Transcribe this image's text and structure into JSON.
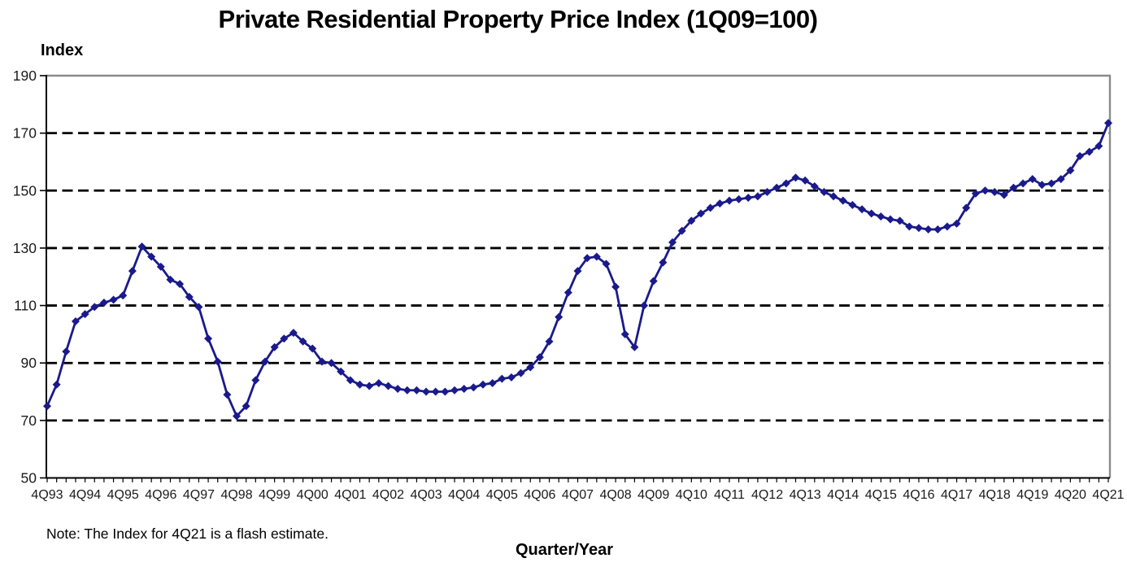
{
  "chart_data": {
    "type": "line",
    "title": "Private Residential Property Price Index (1Q09=100)",
    "ylabel": "Index",
    "xlabel": "Quarter/Year",
    "note": "Note: The Index for 4Q21 is a flash estimate.",
    "series_name": "Private Residential Property Price Index",
    "ylim": [
      50,
      190
    ],
    "yticks": [
      50,
      70,
      90,
      110,
      130,
      150,
      170,
      190
    ],
    "x_tick_label_step": 4,
    "grid": "horizontal-dashed",
    "legend": "none",
    "marker": "diamond",
    "colors": {
      "series": "#1a1a8c",
      "grid": "#000000",
      "plot_border": "#8a8a8a",
      "axis": "#000000",
      "text": "#1a1a1a"
    },
    "categories": [
      "4Q93",
      "1Q94",
      "2Q94",
      "3Q94",
      "4Q94",
      "1Q95",
      "2Q95",
      "3Q95",
      "4Q95",
      "1Q96",
      "2Q96",
      "3Q96",
      "4Q96",
      "1Q97",
      "2Q97",
      "3Q97",
      "4Q97",
      "1Q98",
      "2Q98",
      "3Q98",
      "4Q98",
      "1Q99",
      "2Q99",
      "3Q99",
      "4Q99",
      "1Q00",
      "2Q00",
      "3Q00",
      "4Q00",
      "1Q01",
      "2Q01",
      "3Q01",
      "4Q01",
      "1Q02",
      "2Q02",
      "3Q02",
      "4Q02",
      "1Q03",
      "2Q03",
      "3Q03",
      "4Q03",
      "1Q04",
      "2Q04",
      "3Q04",
      "4Q04",
      "1Q05",
      "2Q05",
      "3Q05",
      "4Q05",
      "1Q06",
      "2Q06",
      "3Q06",
      "4Q06",
      "1Q07",
      "2Q07",
      "3Q07",
      "4Q07",
      "1Q08",
      "2Q08",
      "3Q08",
      "4Q08",
      "1Q09",
      "2Q09",
      "3Q09",
      "4Q09",
      "1Q10",
      "2Q10",
      "3Q10",
      "4Q10",
      "1Q11",
      "2Q11",
      "3Q11",
      "4Q11",
      "1Q12",
      "2Q12",
      "3Q12",
      "4Q12",
      "1Q13",
      "2Q13",
      "3Q13",
      "4Q13",
      "1Q14",
      "2Q14",
      "3Q14",
      "4Q14",
      "1Q15",
      "2Q15",
      "3Q15",
      "4Q15",
      "1Q16",
      "2Q16",
      "3Q16",
      "4Q16",
      "1Q17",
      "2Q17",
      "3Q17",
      "4Q17",
      "1Q18",
      "2Q18",
      "3Q18",
      "4Q18",
      "1Q19",
      "2Q19",
      "3Q19",
      "4Q19",
      "1Q20",
      "2Q20",
      "3Q20",
      "4Q20",
      "1Q21",
      "2Q21",
      "3Q21",
      "4Q21"
    ],
    "values": [
      75,
      82.5,
      94,
      104.5,
      107,
      109.5,
      111,
      112,
      113.5,
      122,
      130.5,
      127,
      123.5,
      119,
      117.5,
      113,
      109.5,
      98.5,
      90.5,
      79,
      71.5,
      75,
      84,
      90.5,
      95.5,
      98.5,
      100.5,
      97.5,
      95,
      90.5,
      90,
      87,
      84,
      82.5,
      82,
      83,
      82,
      81,
      80.5,
      80.5,
      80,
      80,
      80,
      80.5,
      81,
      81.5,
      82.5,
      83,
      84.5,
      85,
      86.5,
      88.5,
      92,
      97.5,
      106,
      114.5,
      122,
      126.5,
      127,
      124.5,
      116.5,
      100,
      95.5,
      110,
      118.5,
      125,
      132,
      136,
      139.5,
      142,
      144,
      145.5,
      146.5,
      147,
      147.5,
      148,
      149.5,
      151,
      152.5,
      154.5,
      153.5,
      151.5,
      149.5,
      148,
      146.5,
      145,
      143.5,
      142,
      141,
      140,
      139.5,
      137.5,
      137,
      136.5,
      136.5,
      137.5,
      138.5,
      144,
      149,
      150,
      149.5,
      148.5,
      151,
      152.5,
      154,
      152,
      152.5,
      154,
      157,
      162,
      163.5,
      165.5,
      173.5
    ]
  }
}
